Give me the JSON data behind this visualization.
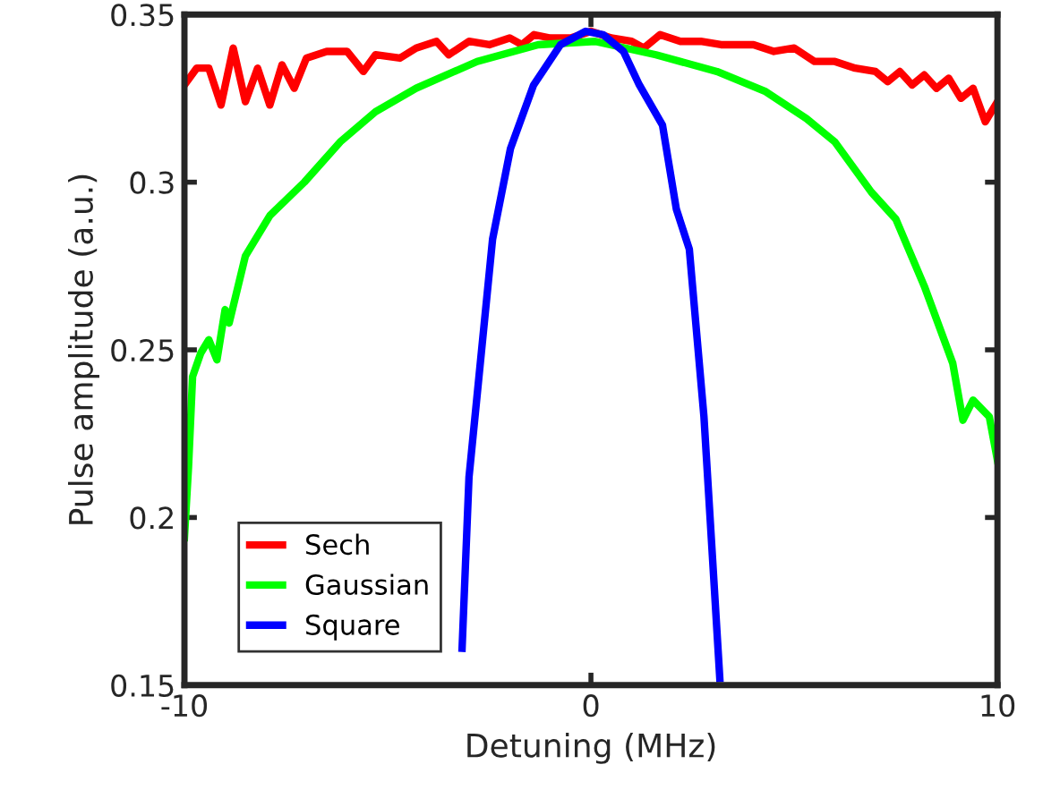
{
  "chart_data": {
    "type": "line",
    "xlabel": "Detuning (MHz)",
    "ylabel": "Pulse amplitude (a.u.)",
    "xlim": [
      -10,
      10
    ],
    "xticks": [
      -10,
      0,
      10
    ],
    "ylim": [
      0.15,
      0.35
    ],
    "yticks": [
      0.15,
      0.2,
      0.25,
      0.3,
      0.35
    ],
    "grid": false,
    "legend": "bottom left",
    "marker": "none",
    "line_style": "solid",
    "series": [
      {
        "name": "Sech",
        "color": "#ff0000",
        "x": [
          -10,
          -9.7,
          -9.4,
          -9.1,
          -8.8,
          -8.5,
          -8.2,
          -7.9,
          -7.6,
          -7.3,
          -7.0,
          -6.5,
          -6.0,
          -5.6,
          -5.3,
          -4.7,
          -4.3,
          -3.8,
          -3.5,
          -3.0,
          -2.5,
          -2.0,
          -1.7,
          -1.4,
          -1.0,
          -0.5,
          0,
          0.5,
          1.0,
          1.3,
          1.7,
          2.2,
          2.7,
          3.2,
          4.0,
          4.5,
          5.0,
          5.5,
          6.0,
          6.5,
          7.0,
          7.3,
          7.6,
          7.9,
          8.2,
          8.5,
          8.8,
          9.1,
          9.4,
          9.7,
          10
        ],
        "values": [
          0.329,
          0.334,
          0.334,
          0.323,
          0.34,
          0.324,
          0.334,
          0.323,
          0.335,
          0.328,
          0.337,
          0.339,
          0.339,
          0.333,
          0.338,
          0.337,
          0.34,
          0.342,
          0.338,
          0.342,
          0.341,
          0.343,
          0.341,
          0.344,
          0.343,
          0.343,
          0.345,
          0.343,
          0.342,
          0.34,
          0.344,
          0.342,
          0.342,
          0.341,
          0.341,
          0.339,
          0.34,
          0.336,
          0.336,
          0.334,
          0.333,
          0.33,
          0.333,
          0.329,
          0.332,
          0.328,
          0.331,
          0.325,
          0.328,
          0.318,
          0.324
        ]
      },
      {
        "name": "Gaussian",
        "color": "#00ff00",
        "x": [
          -10,
          -9.9,
          -9.8,
          -9.6,
          -9.4,
          -9.2,
          -9.0,
          -8.9,
          -8.5,
          -7.9,
          -7.05,
          -6.17,
          -5.3,
          -4.3,
          -2.8,
          -1.3,
          0.1,
          1.6,
          3.1,
          4.3,
          5.3,
          6.0,
          6.9,
          7.5,
          8.2,
          8.9,
          9.15,
          9.4,
          9.8,
          10
        ],
        "values": [
          0.194,
          0.215,
          0.242,
          0.249,
          0.253,
          0.247,
          0.262,
          0.258,
          0.278,
          0.29,
          0.3,
          0.312,
          0.321,
          0.328,
          0.336,
          0.341,
          0.342,
          0.338,
          0.333,
          0.327,
          0.319,
          0.312,
          0.297,
          0.289,
          0.269,
          0.246,
          0.229,
          0.235,
          0.23,
          0.217
        ]
      },
      {
        "name": "Square",
        "color": "#0000ff",
        "x": [
          -3.17,
          -3.0,
          -2.42,
          -1.98,
          -1.41,
          -0.75,
          -0.13,
          0.3,
          0.8,
          1.19,
          1.76,
          2.1,
          2.42,
          2.78,
          3.17
        ],
        "values": [
          0.161,
          0.212,
          0.283,
          0.31,
          0.329,
          0.341,
          0.345,
          0.344,
          0.339,
          0.329,
          0.317,
          0.292,
          0.28,
          0.23,
          0.152
        ]
      }
    ]
  }
}
